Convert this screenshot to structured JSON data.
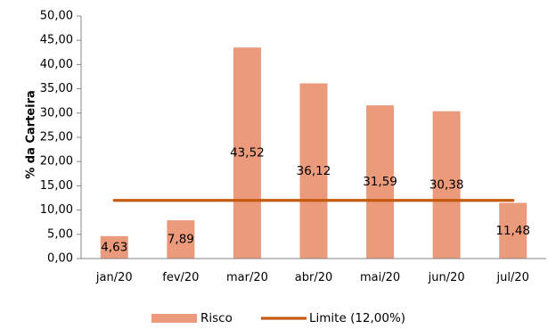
{
  "chart_data": {
    "type": "bar",
    "categories": [
      "jan/20",
      "fev/20",
      "mar/20",
      "abr/20",
      "mai/20",
      "jun/20",
      "jul/20"
    ],
    "series": [
      {
        "name": "Risco",
        "type": "bar",
        "color": "#EB9A7B",
        "values": [
          4.63,
          7.89,
          43.52,
          36.12,
          31.59,
          30.38,
          11.48
        ],
        "labels": [
          "4,63",
          "7,89",
          "43,52",
          "36,12",
          "31,59",
          "30,38",
          "11,48"
        ]
      },
      {
        "name": "Limite (12,00%)",
        "type": "line",
        "color": "#C55A11",
        "values": [
          12,
          12,
          12,
          12,
          12,
          12,
          12
        ]
      }
    ],
    "ylabel": "% da Carteira",
    "xlabel": "",
    "ylim": [
      0,
      50
    ],
    "yticks": [
      "0,00",
      "5,00",
      "10,00",
      "15,00",
      "20,00",
      "25,00",
      "30,00",
      "35,00",
      "40,00",
      "45,00",
      "50,00"
    ],
    "grid": false,
    "legend_position": "bottom"
  }
}
